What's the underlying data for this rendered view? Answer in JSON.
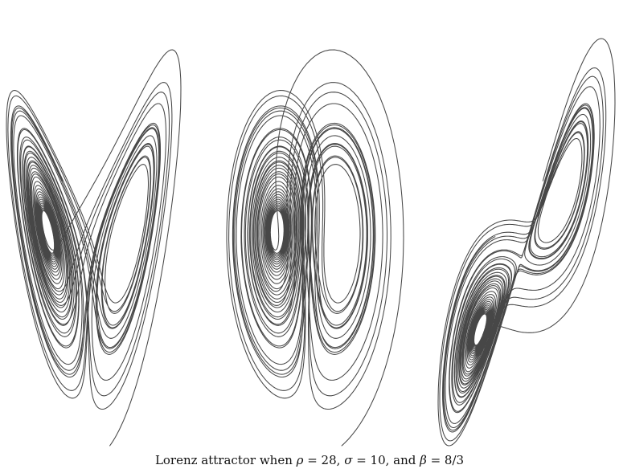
{
  "figure": {
    "stroke_color": "#333333",
    "background": "#ffffff",
    "panels": [
      {
        "id": "xz-projection"
      },
      {
        "id": "yz-projection"
      },
      {
        "id": "xy-projection"
      }
    ]
  },
  "caption": {
    "prefix": "Lorenz attractor when ",
    "rho_symbol": "ρ",
    "rho_eq": " = 28, ",
    "sigma_symbol": "σ",
    "sigma_eq": " = 10, and ",
    "beta_symbol": "β",
    "beta_eq": " = 8/3"
  }
}
